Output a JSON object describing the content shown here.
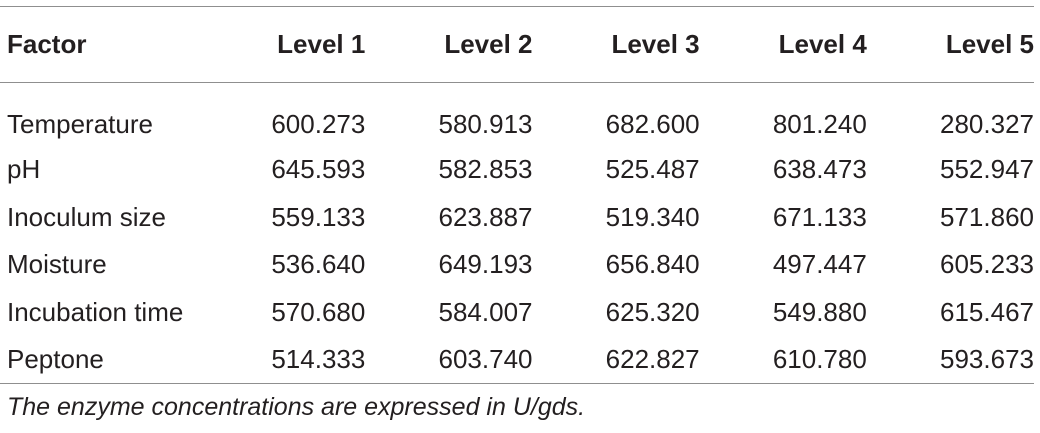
{
  "table": {
    "headers": [
      "Factor",
      "Level 1",
      "Level 2",
      "Level 3",
      "Level 4",
      "Level 5"
    ],
    "rows": [
      [
        "Temperature",
        "600.273",
        "580.913",
        "682.600",
        "801.240",
        "280.327"
      ],
      [
        "pH",
        "645.593",
        "582.853",
        "525.487",
        "638.473",
        "552.947"
      ],
      [
        "Inoculum size",
        "559.133",
        "623.887",
        "519.340",
        "671.133",
        "571.860"
      ],
      [
        "Moisture",
        "536.640",
        "649.193",
        "656.840",
        "497.447",
        "605.233"
      ],
      [
        "Incubation time",
        "570.680",
        "584.007",
        "625.320",
        "549.880",
        "615.467"
      ],
      [
        "Peptone",
        "514.333",
        "603.740",
        "622.827",
        "610.780",
        "593.673"
      ]
    ]
  },
  "footnote": "The enzyme concentrations are expressed in U/gds."
}
